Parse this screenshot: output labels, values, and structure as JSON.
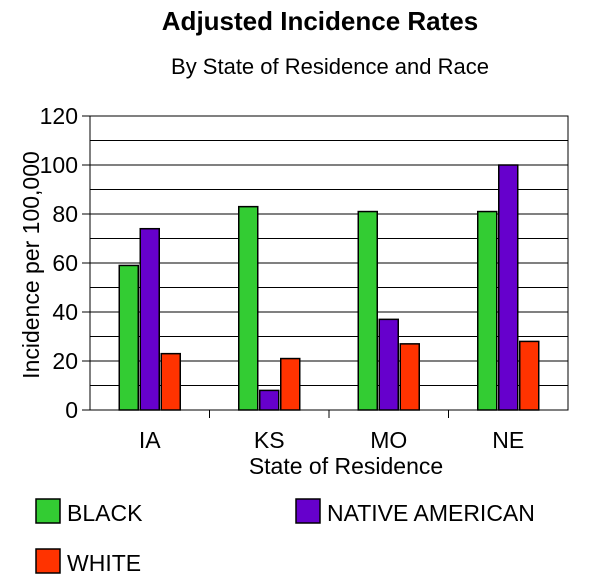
{
  "chart_data": {
    "type": "bar",
    "title": "Adjusted Incidence Rates",
    "subtitle": "By State of Residence and Race",
    "xlabel": "State of Residence",
    "ylabel": "Incidence per 100,000",
    "categories": [
      "IA",
      "KS",
      "MO",
      "NE"
    ],
    "yticks": [
      "0",
      "20",
      "40",
      "60",
      "80",
      "100",
      "120"
    ],
    "ylim": [
      0,
      120
    ],
    "grid": true,
    "legend_position": "bottom",
    "series": [
      {
        "name": "BLACK",
        "color": "#33cc33",
        "values": [
          59,
          83,
          81,
          81
        ]
      },
      {
        "name": "NATIVE AMERICAN",
        "color": "#6600cc",
        "values": [
          74,
          8,
          37,
          100
        ]
      },
      {
        "name": "WHITE",
        "color": "#ff3300",
        "values": [
          23,
          21,
          27,
          28
        ]
      }
    ]
  }
}
